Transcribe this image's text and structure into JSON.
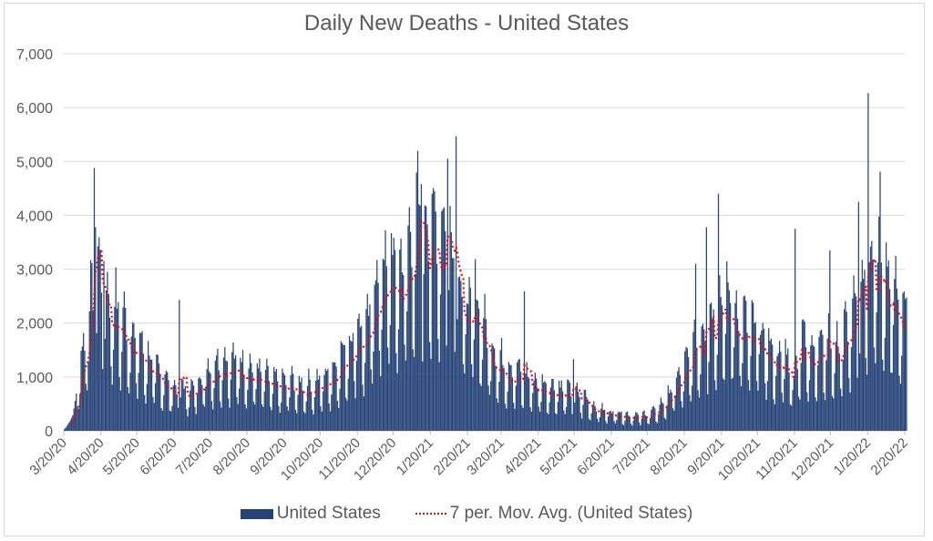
{
  "chart_data": {
    "type": "bar",
    "title": "Daily New Deaths - United States",
    "xlabel": "",
    "ylabel": "",
    "ylim": [
      0,
      7000
    ],
    "y_ticks": [
      "0",
      "1,000",
      "2,000",
      "3,000",
      "4,000",
      "5,000",
      "6,000",
      "7,000"
    ],
    "y_tick_values": [
      0,
      1000,
      2000,
      3000,
      4000,
      5000,
      6000,
      7000
    ],
    "x_start_date": "2020-03-20",
    "x_end_date": "2022-02-21",
    "x_tick_labels": [
      "3/20/20",
      "4/20/20",
      "5/20/20",
      "6/20/20",
      "7/20/20",
      "8/20/20",
      "9/20/20",
      "10/20/20",
      "11/20/20",
      "12/20/20",
      "1/20/21",
      "2/20/21",
      "3/20/21",
      "4/20/21",
      "5/20/21",
      "6/20/21",
      "7/20/21",
      "8/20/21",
      "9/20/21",
      "10/20/21",
      "11/20/21",
      "12/20/21",
      "1/20/22",
      "2/20/22"
    ],
    "x_tick_day_offsets": [
      0,
      31,
      61,
      92,
      122,
      153,
      184,
      214,
      245,
      275,
      306,
      337,
      365,
      396,
      426,
      457,
      487,
      518,
      549,
      579,
      610,
      640,
      671,
      702
    ],
    "grid": true,
    "legend_position": "bottom",
    "series": [
      {
        "name": "United States",
        "kind": "bar",
        "color": "#264478",
        "note": "daily values; weekly 7-day averages listed, with weekday variation pattern and notable spikes",
        "weekly_avg_start": "2020-03-20",
        "weekly_avg": [
          50,
          300,
          1100,
          1900,
          2600,
          2100,
          1950,
          1750,
          1500,
          1350,
          1150,
          950,
          850,
          650,
          700,
          620,
          800,
          950,
          1050,
          1150,
          1100,
          1050,
          1000,
          950,
          850,
          780,
          750,
          780,
          720,
          720,
          750,
          850,
          950,
          1150,
          1350,
          1650,
          1500,
          2200,
          2500,
          2650,
          2450,
          2800,
          3300,
          3250,
          3050,
          3200,
          3100,
          2400,
          1950,
          2100,
          1650,
          1300,
          1100,
          1000,
          950,
          850,
          780,
          730,
          700,
          680,
          620,
          580,
          550,
          400,
          330,
          300,
          290,
          250,
          240,
          250,
          280,
          380,
          550,
          800,
          1000,
          1250,
          1500,
          1750,
          2000,
          2050,
          1900,
          1700,
          1600,
          1550,
          1300,
          1150,
          1200,
          850,
          1500,
          1300,
          1350,
          1450,
          1250,
          1550,
          1750,
          2150,
          2600,
          2600,
          2350,
          2150,
          1900
        ],
        "weekday_factors": [
          1.35,
          1.4,
          1.3,
          1.15,
          0.55,
          0.45,
          0.8
        ],
        "spikes": [
          {
            "day": 25,
            "value": 4880
          },
          {
            "day": 26,
            "value": 3780
          },
          {
            "day": 33,
            "value": 3150
          },
          {
            "day": 96,
            "value": 2430
          },
          {
            "day": 298,
            "value": 4580
          },
          {
            "day": 307,
            "value": 4400
          },
          {
            "day": 320,
            "value": 5050
          },
          {
            "day": 327,
            "value": 5470
          },
          {
            "day": 384,
            "value": 2590
          },
          {
            "day": 425,
            "value": 1330
          },
          {
            "day": 527,
            "value": 3100
          },
          {
            "day": 536,
            "value": 3780
          },
          {
            "day": 546,
            "value": 4400
          },
          {
            "day": 610,
            "value": 3750
          },
          {
            "day": 639,
            "value": 3350
          },
          {
            "day": 663,
            "value": 4250
          },
          {
            "day": 671,
            "value": 6270
          },
          {
            "day": 681,
            "value": 4810
          }
        ]
      },
      {
        "name": "7 per. Mov. Avg. (United States)",
        "kind": "line",
        "style": "dotted",
        "color": "#ff0000"
      }
    ]
  },
  "legend": {
    "bar_label": "United States",
    "line_label": "7 per. Mov. Avg. (United States)"
  }
}
